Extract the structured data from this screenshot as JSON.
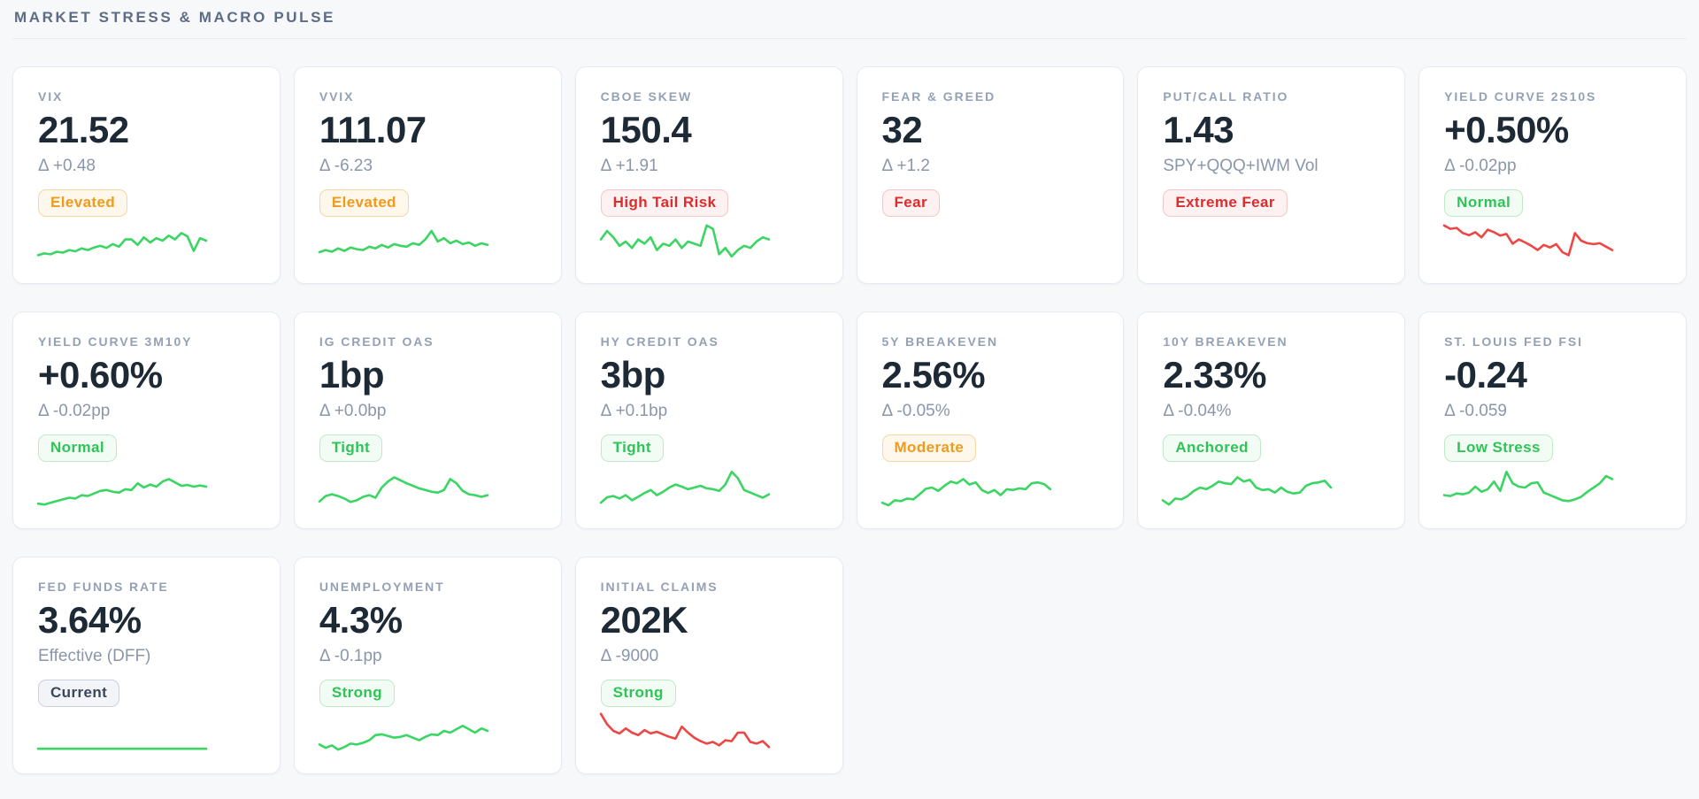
{
  "header": {
    "title": "MARKET STRESS & MACRO PULSE"
  },
  "colors": {
    "page_bg": "#f7f8fa",
    "card_bg": "#ffffff",
    "card_border": "#e7ebf1",
    "header_text": "#5d6c84",
    "metric_title_text": "#94a1b5",
    "metric_value_text": "#1e2936",
    "metric_subtext": "#8a96aa",
    "spark_green": "#3bd563",
    "spark_red": "#ee4545",
    "badge_warn_text": "#ee9b1f",
    "badge_good_text": "#2dc457",
    "badge_bad_text": "#dc2c2c",
    "badge_neutral_text": "#3c4759"
  },
  "cards": [
    {
      "title": "VIX",
      "value": "21.52",
      "subtext": "Δ +0.48",
      "badge": {
        "label": "Elevated",
        "variant": "warn"
      },
      "sparkline": {
        "color": "green",
        "values": [
          18,
          22,
          20,
          26,
          24,
          30,
          27,
          34,
          30,
          36,
          40,
          35,
          44,
          38,
          55,
          55,
          42,
          60,
          48,
          58,
          52,
          64,
          55,
          70,
          62,
          28,
          58,
          52
        ]
      }
    },
    {
      "title": "VVIX",
      "value": "111.07",
      "subtext": "Δ -6.23",
      "badge": {
        "label": "Elevated",
        "variant": "warn"
      },
      "sparkline": {
        "color": "green",
        "values": [
          25,
          30,
          26,
          34,
          28,
          36,
          32,
          30,
          38,
          34,
          42,
          36,
          44,
          40,
          38,
          46,
          42,
          55,
          75,
          50,
          58,
          46,
          52,
          44,
          48,
          40,
          46,
          42
        ]
      }
    },
    {
      "title": "CBOE SKEW",
      "value": "150.4",
      "subtext": "Δ +1.91",
      "badge": {
        "label": "High Tail Risk",
        "variant": "bad"
      },
      "sparkline": {
        "color": "green",
        "values": [
          55,
          75,
          60,
          40,
          50,
          35,
          55,
          45,
          60,
          30,
          45,
          40,
          55,
          35,
          50,
          45,
          40,
          88,
          80,
          20,
          35,
          15,
          30,
          40,
          35,
          50,
          60,
          55
        ]
      }
    },
    {
      "title": "FEAR & GREED",
      "value": "32",
      "subtext": "Δ +1.2",
      "badge": {
        "label": "Fear",
        "variant": "bad"
      },
      "sparkline": null
    },
    {
      "title": "PUT/CALL RATIO",
      "value": "1.43",
      "subtext": "SPY+QQQ+IWM Vol",
      "badge": {
        "label": "Extreme Fear",
        "variant": "bad"
      },
      "sparkline": null
    },
    {
      "title": "YIELD CURVE 2S10S",
      "value": "+0.50%",
      "subtext": "Δ -0.02pp",
      "badge": {
        "label": "Normal",
        "variant": "good"
      },
      "sparkline": {
        "color": "red",
        "values": [
          88,
          80,
          82,
          70,
          65,
          72,
          60,
          78,
          72,
          64,
          68,
          45,
          55,
          48,
          40,
          30,
          42,
          36,
          44,
          25,
          18,
          70,
          52,
          46,
          44,
          46,
          38,
          30
        ]
      }
    },
    {
      "title": "YIELD CURVE 3M10Y",
      "value": "+0.60%",
      "subtext": "Δ -0.02pp",
      "badge": {
        "label": "Normal",
        "variant": "good"
      },
      "sparkline": {
        "color": "green",
        "values": [
          10,
          8,
          12,
          16,
          20,
          24,
          22,
          30,
          28,
          34,
          40,
          42,
          38,
          36,
          44,
          42,
          58,
          48,
          55,
          50,
          62,
          68,
          60,
          52,
          54,
          50,
          53,
          50
        ]
      }
    },
    {
      "title": "IG CREDIT OAS",
      "value": "1bp",
      "subtext": "Δ +0.0bp",
      "badge": {
        "label": "Tight",
        "variant": "good"
      },
      "sparkline": {
        "color": "green",
        "values": [
          15,
          28,
          32,
          28,
          22,
          14,
          18,
          26,
          30,
          24,
          48,
          62,
          72,
          65,
          58,
          52,
          46,
          42,
          38,
          36,
          42,
          68,
          58,
          40,
          32,
          30,
          26,
          30
        ]
      }
    },
    {
      "title": "HY CREDIT OAS",
      "value": "3bp",
      "subtext": "Δ +0.1bp",
      "badge": {
        "label": "Tight",
        "variant": "good"
      },
      "sparkline": {
        "color": "green",
        "values": [
          12,
          25,
          28,
          22,
          30,
          18,
          26,
          35,
          42,
          30,
          38,
          48,
          55,
          50,
          44,
          48,
          52,
          46,
          44,
          40,
          55,
          85,
          70,
          42,
          36,
          30,
          24,
          32
        ]
      }
    },
    {
      "title": "5Y BREAKEVEN",
      "value": "2.56%",
      "subtext": "Δ -0.05%",
      "badge": {
        "label": "Moderate",
        "variant": "warn"
      },
      "sparkline": {
        "color": "green",
        "values": [
          12,
          6,
          18,
          16,
          22,
          20,
          32,
          45,
          48,
          40,
          52,
          62,
          58,
          68,
          55,
          60,
          42,
          35,
          42,
          30,
          44,
          42,
          46,
          44,
          58,
          60,
          56,
          44
        ]
      }
    },
    {
      "title": "10Y BREAKEVEN",
      "value": "2.33%",
      "subtext": "Δ -0.04%",
      "badge": {
        "label": "Anchored",
        "variant": "good"
      },
      "sparkline": {
        "color": "green",
        "values": [
          18,
          8,
          22,
          20,
          28,
          40,
          48,
          44,
          52,
          62,
          58,
          56,
          72,
          62,
          66,
          48,
          42,
          44,
          36,
          48,
          38,
          34,
          36,
          52,
          58,
          60,
          64,
          48
        ]
      }
    },
    {
      "title": "ST. LOUIS FED FSI",
      "value": "-0.24",
      "subtext": "Δ -0.059",
      "badge": {
        "label": "Low Stress",
        "variant": "good"
      },
      "sparkline": {
        "color": "green",
        "values": [
          30,
          28,
          34,
          32,
          36,
          50,
          38,
          44,
          62,
          40,
          85,
          58,
          50,
          48,
          58,
          60,
          36,
          30,
          24,
          18,
          16,
          20,
          26,
          38,
          48,
          58,
          75,
          68
        ]
      }
    },
    {
      "title": "FED FUNDS RATE",
      "value": "3.64%",
      "subtext": "Effective (DFF)",
      "badge": {
        "label": "Current",
        "variant": "neutral"
      },
      "sparkline": {
        "color": "green",
        "values": [
          10,
          10
        ]
      }
    },
    {
      "title": "UNEMPLOYMENT",
      "value": "4.3%",
      "subtext": "Δ -0.1pp",
      "badge": {
        "label": "Strong",
        "variant": "good"
      },
      "sparkline": {
        "color": "green",
        "values": [
          20,
          12,
          18,
          8,
          14,
          22,
          20,
          24,
          30,
          42,
          44,
          40,
          36,
          38,
          42,
          36,
          30,
          38,
          44,
          42,
          52,
          48,
          56,
          64,
          56,
          48,
          58,
          52
        ]
      }
    },
    {
      "title": "INITIAL CLAIMS",
      "value": "202K",
      "subtext": "Δ -9000",
      "badge": {
        "label": "Strong",
        "variant": "good"
      },
      "sparkline": {
        "color": "red",
        "values": [
          92,
          68,
          52,
          46,
          58,
          48,
          42,
          54,
          46,
          50,
          44,
          38,
          34,
          62,
          48,
          36,
          28,
          22,
          26,
          18,
          30,
          28,
          48,
          48,
          26,
          22,
          28,
          14
        ]
      }
    }
  ]
}
